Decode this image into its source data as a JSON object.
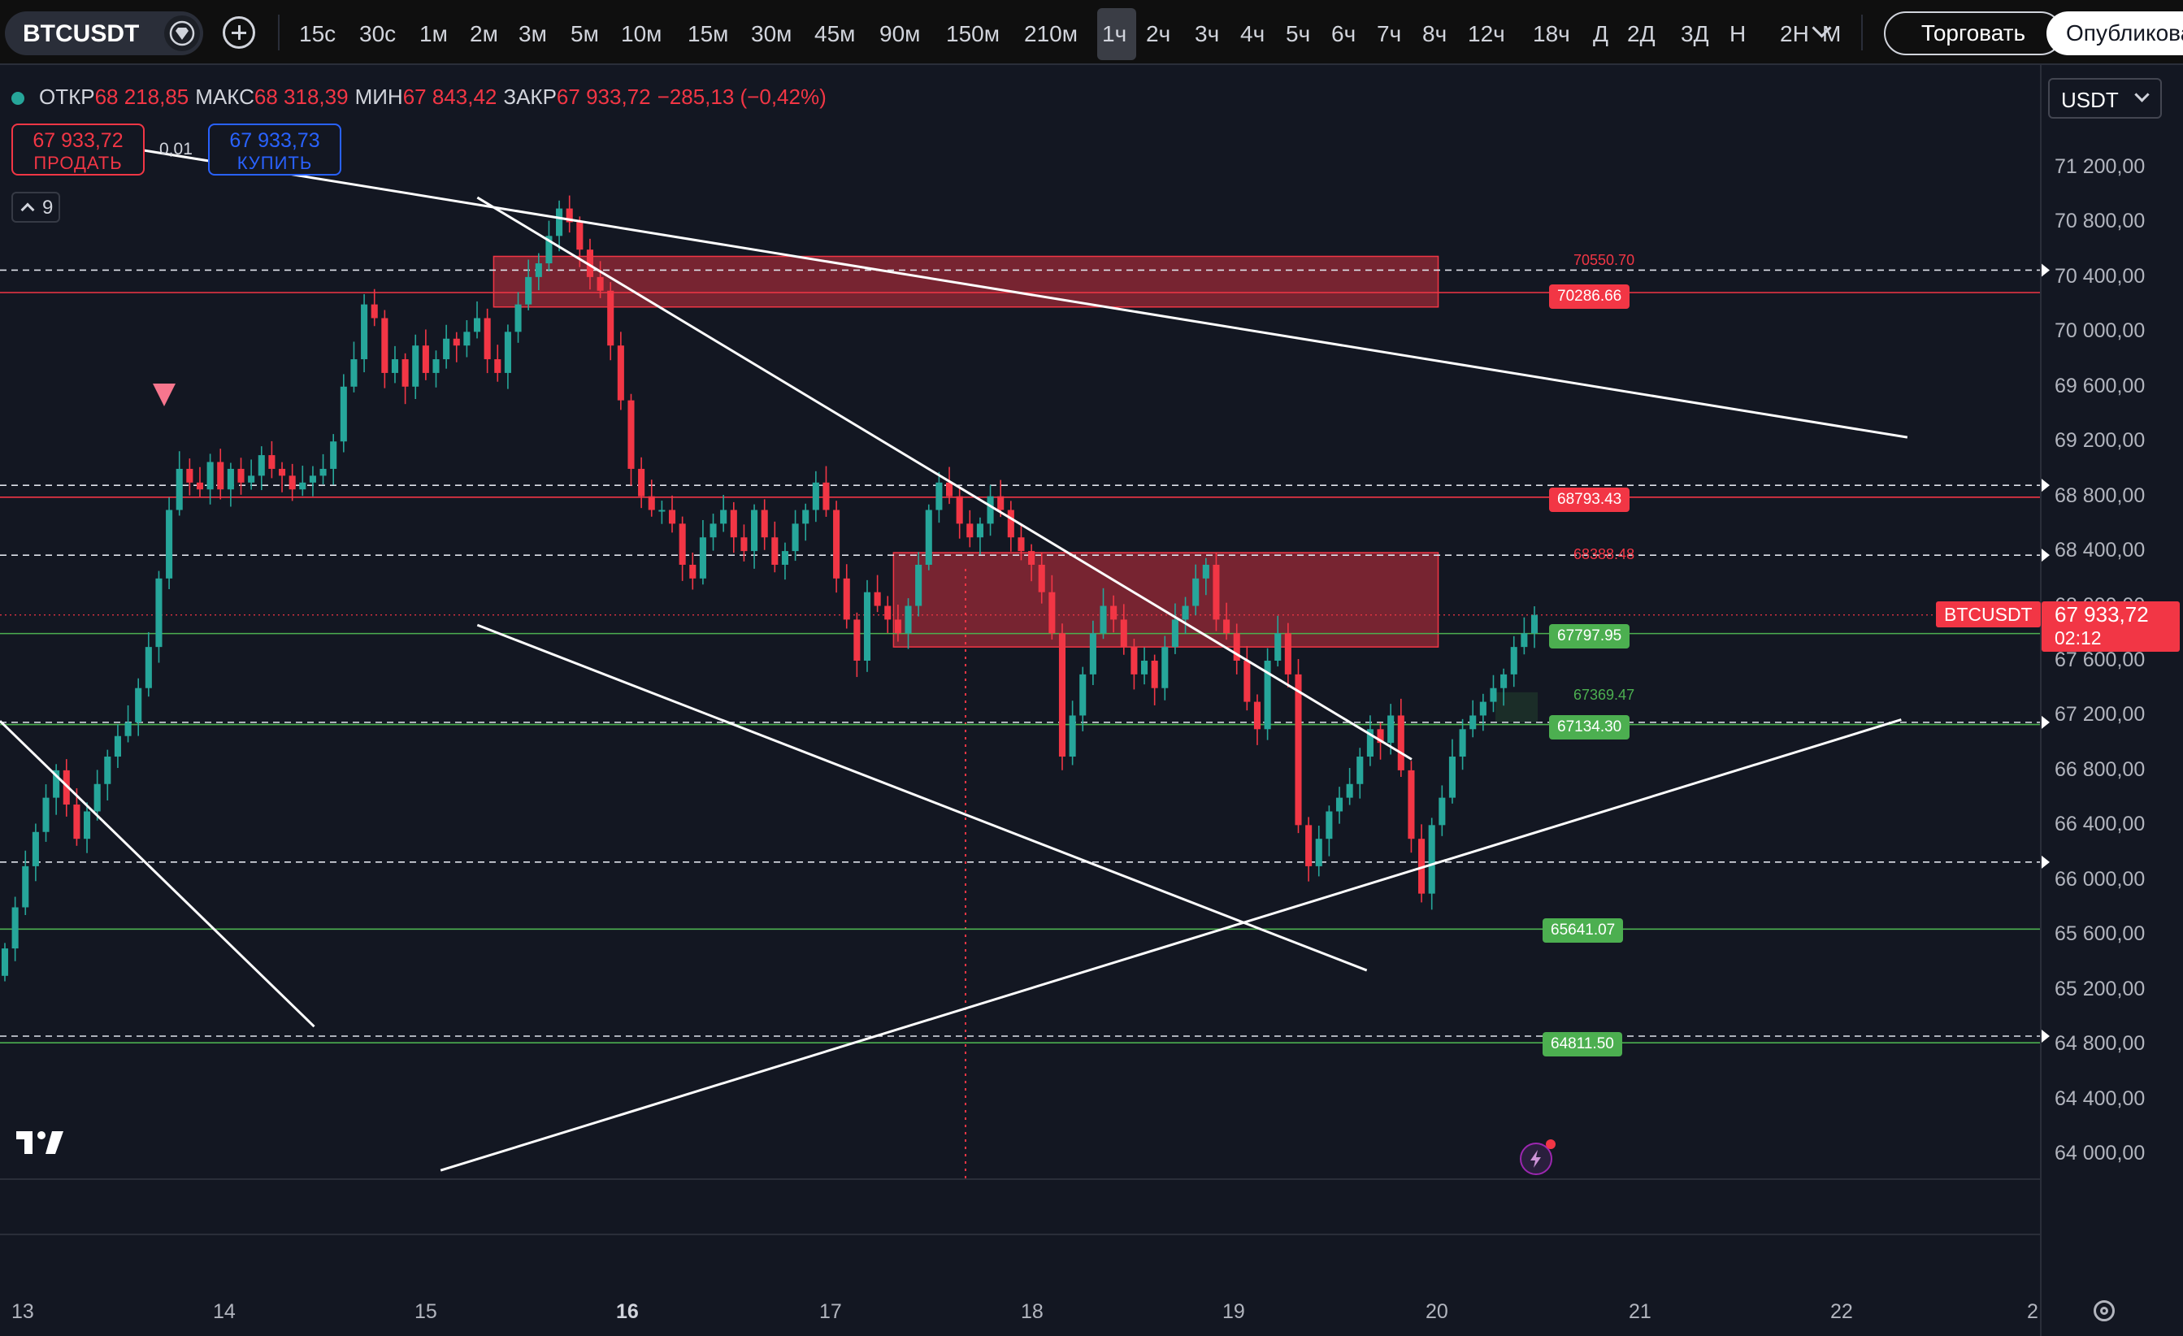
{
  "header": {
    "symbol": "BTCUSDT",
    "timeframes": [
      "15с",
      "30с",
      "1м",
      "2м",
      "3м",
      "5м",
      "10м",
      "15м",
      "30м",
      "45м",
      "90м",
      "150м",
      "210м",
      "1ч",
      "2ч",
      "3ч",
      "4ч",
      "5ч",
      "6ч",
      "7ч",
      "8ч",
      "12ч",
      "18ч",
      "Д",
      "2Д",
      "3Д",
      "Н",
      "2Н",
      "М"
    ],
    "active_timeframe": "1ч",
    "trade_label": "Торговать",
    "publish_label": "Опубликовать"
  },
  "legend": {
    "open_label": "ОТКР",
    "open": "68 218,85",
    "high_label": "МАКС",
    "high": "68 318,39",
    "low_label": "МИН",
    "low": "67 843,42",
    "close_label": "ЗАКР",
    "close": "67 933,72",
    "change": "−285,13 (−0,42%)"
  },
  "currency": "USDT",
  "order": {
    "sell_price": "67 933,72",
    "sell_label": "ПРОДАТЬ",
    "buy_price": "67 933,73",
    "buy_label": "КУПИТЬ",
    "spread": "0,01"
  },
  "indicators_count": "9",
  "current": {
    "symbol_badge": "BTCUSDT",
    "price": "67 933,72",
    "timer": "02:12"
  },
  "colors": {
    "up": "#26a69a",
    "down": "#f23645",
    "zone_red": "#f23645",
    "green_level": "#4caf50",
    "background": "#131722"
  },
  "chart_data": {
    "type": "candlestick",
    "symbol": "BTCUSDT",
    "timeframe": "1h",
    "y_ticks": [
      "71 200,00",
      "70 800,00",
      "70 400,00",
      "70 000,00",
      "69 600,00",
      "69 200,00",
      "68 800,00",
      "68 400,00",
      "68 000,00",
      "67 600,00",
      "67 200,00",
      "66 800,00",
      "66 400,00",
      "66 000,00",
      "65 600,00",
      "65 200,00",
      "64 800,00",
      "64 400,00",
      "64 000,00"
    ],
    "ylim": [
      63850,
      71500
    ],
    "x_ticks": [
      "13",
      "14",
      "15",
      "16",
      "17",
      "18",
      "19",
      "20",
      "21",
      "22",
      "2"
    ],
    "level_tags": [
      {
        "value": "70286.66",
        "color": "red"
      },
      {
        "value": "68793.43",
        "color": "red"
      },
      {
        "value": "67797.95",
        "color": "green"
      },
      {
        "value": "67134.30",
        "color": "green"
      },
      {
        "value": "65641.07",
        "color": "green"
      },
      {
        "value": "64811.50",
        "color": "green"
      }
    ],
    "zone_labels": [
      {
        "value": "70550.70",
        "color": "red"
      },
      {
        "value": "68388.48",
        "color": "red"
      },
      {
        "value": "67369.47",
        "color": "green"
      }
    ],
    "dashed_levels": [
      70450,
      68880,
      68370,
      67150,
      66130,
      64860
    ],
    "solid_levels": [
      {
        "price": 70286.66,
        "color": "red"
      },
      {
        "price": 68793.43,
        "color": "red"
      },
      {
        "price": 67797.95,
        "color": "green"
      },
      {
        "price": 67134.3,
        "color": "green"
      },
      {
        "price": 65641.07,
        "color": "green"
      },
      {
        "price": 64811.5,
        "color": "green"
      }
    ],
    "zones": [
      {
        "x0": 0.242,
        "x1": 0.705,
        "y0": 70550.7,
        "y1": 70181.4
      },
      {
        "x0": 0.438,
        "x1": 0.705,
        "y0": 68388.48,
        "y1": 67700
      }
    ],
    "trendlines": [
      {
        "p1": [
          0.06,
          71350
        ],
        "p2": [
          0.935,
          69230
        ]
      },
      {
        "p1": [
          0.234,
          70980
        ],
        "p2": [
          0.692,
          66880
        ]
      },
      {
        "p1": [
          0.234,
          67860
        ],
        "p2": [
          0.67,
          65340
        ]
      },
      {
        "p1": [
          0.216,
          63880
        ],
        "p2": [
          0.932,
          67170
        ]
      },
      {
        "p1": [
          0,
          67160
        ],
        "p2": [
          0.154,
          64930
        ]
      }
    ],
    "closes": [
      65500,
      65800,
      66100,
      66350,
      66600,
      66800,
      66550,
      66300,
      66500,
      66700,
      66900,
      67050,
      67150,
      67400,
      67700,
      68200,
      68700,
      69000,
      68900,
      68850,
      69050,
      68850,
      69000,
      68900,
      68950,
      69100,
      69000,
      68950,
      68850,
      68900,
      68950,
      69000,
      69200,
      69600,
      69800,
      70200,
      70100,
      69700,
      69800,
      69600,
      69900,
      69700,
      69800,
      69950,
      69900,
      70000,
      70100,
      69800,
      69700,
      70000,
      70200,
      70400,
      70500,
      70700,
      70900,
      70800,
      70600,
      70400,
      70300,
      69900,
      69500,
      69000,
      68800,
      68700,
      68700,
      68600,
      68300,
      68200,
      68500,
      68600,
      68700,
      68500,
      68400,
      68700,
      68500,
      68300,
      68400,
      68600,
      68700,
      68900,
      68700,
      68200,
      67900,
      67600,
      68100,
      68000,
      67900,
      67800,
      68000,
      68300,
      68700,
      68900,
      68800,
      68600,
      68500,
      68600,
      68800,
      68700,
      68500,
      68400,
      68300,
      68100,
      67800,
      66900,
      67200,
      67500,
      67800,
      68000,
      67900,
      67700,
      67500,
      67600,
      67400,
      67700,
      67900,
      68000,
      68200,
      68300,
      67900,
      67800,
      67600,
      67300,
      67100,
      67600,
      67800,
      67500,
      66400,
      66100,
      66300,
      66500,
      66600,
      66700,
      66900,
      67100,
      67000,
      67200,
      66800,
      66300,
      65900,
      66400,
      66600,
      66900,
      67100,
      67200,
      67300,
      67400,
      67500,
      67700,
      67800,
      67934
    ]
  }
}
